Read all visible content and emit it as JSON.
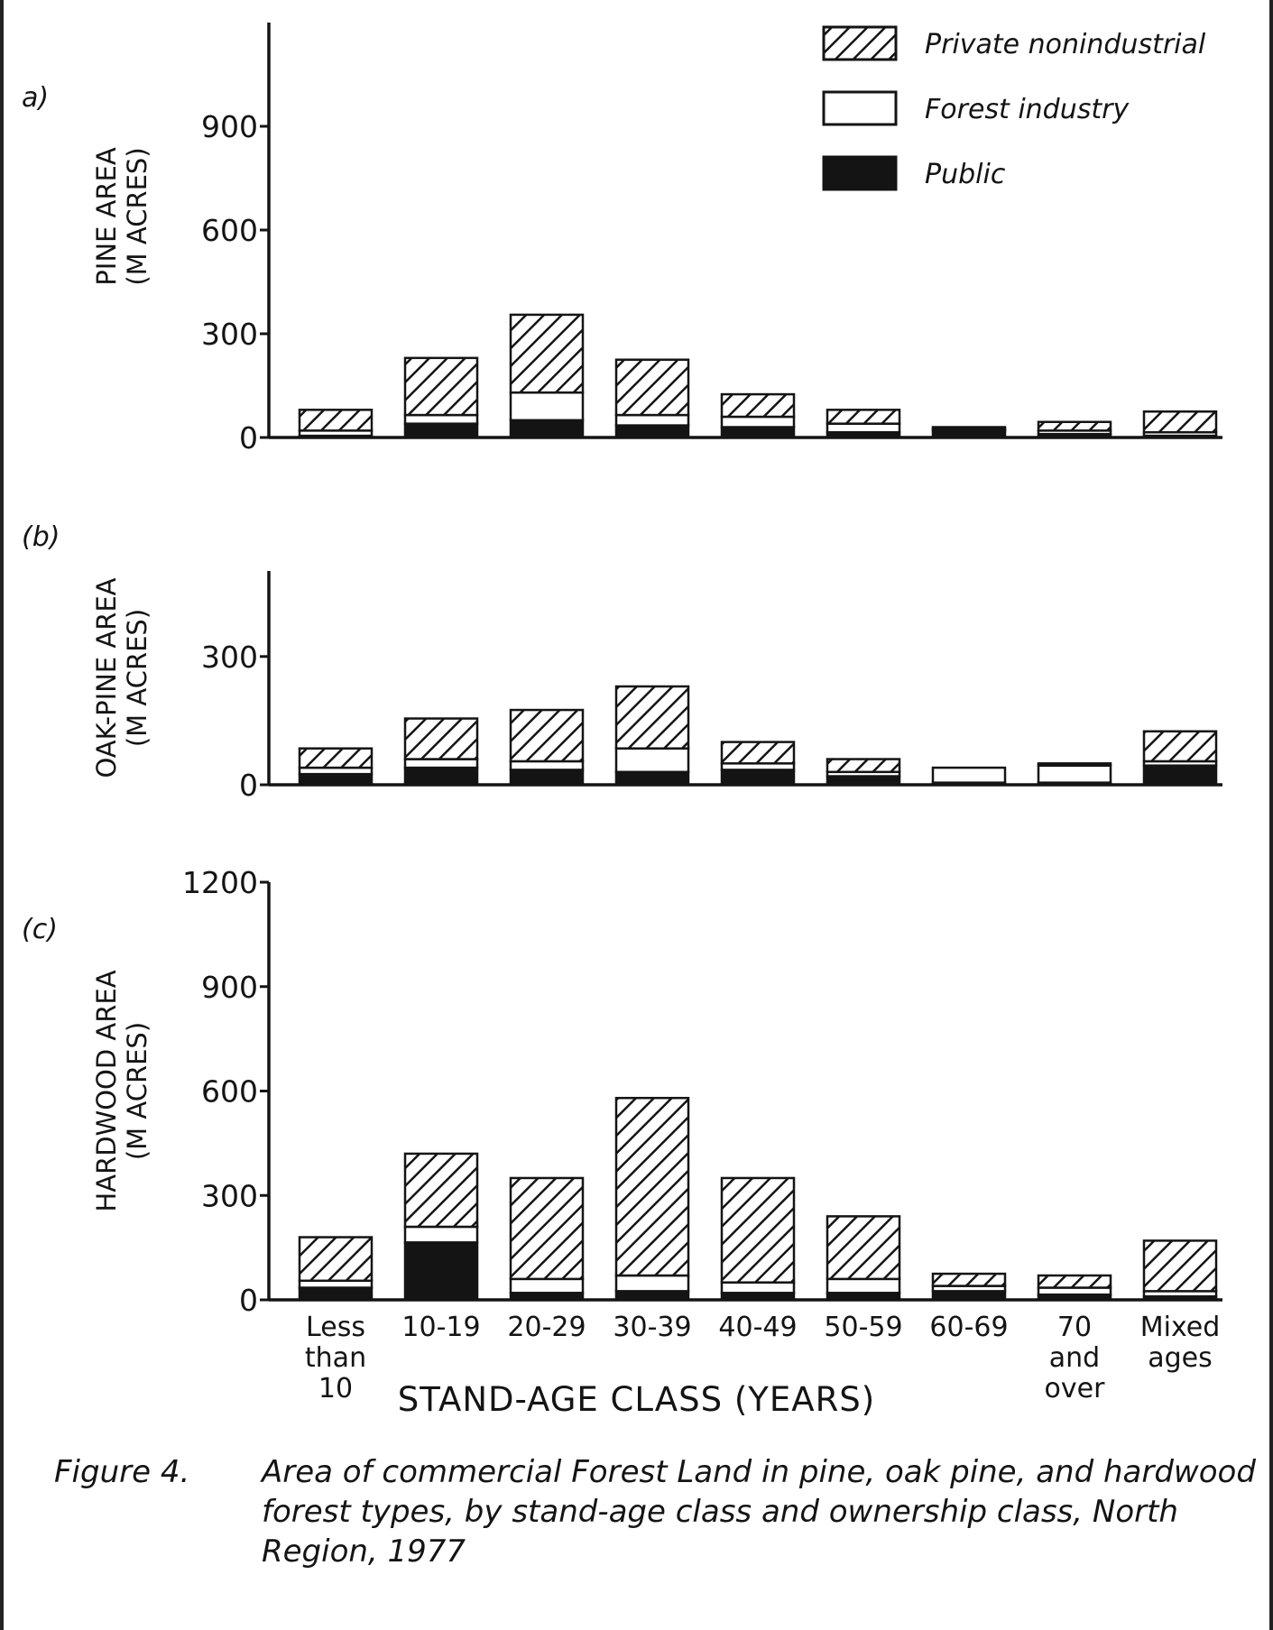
{
  "legend": [
    {
      "key": "private",
      "label": "Private nonindustrial",
      "pattern": "hatched"
    },
    {
      "key": "industry",
      "label": "Forest industry",
      "pattern": "white"
    },
    {
      "key": "public",
      "label": "Public",
      "pattern": "solid-black"
    }
  ],
  "caption": {
    "label": "Figure 4.",
    "text": "Area of commercial Forest Land in pine, oak pine, and hardwood forest types, by stand-age class and ownership class, North Region, 1977"
  },
  "xlabel": "STAND-AGE CLASS (YEARS)",
  "colors": {
    "ink": "#141414",
    "paper": "#ffffff"
  },
  "chart_data": [
    {
      "type": "bar",
      "stacked": true,
      "panel": "a)",
      "ylabel": [
        "PINE AREA",
        "(M ACRES)"
      ],
      "yticks": [
        0,
        300,
        600,
        900
      ],
      "ylim": [
        0,
        1200
      ],
      "categories": [
        "Less than 10",
        "10-19",
        "20-29",
        "30-39",
        "40-49",
        "50-59",
        "60-69",
        "70 and over",
        "Mixed ages"
      ],
      "series": [
        {
          "name": "Public",
          "values": [
            5,
            40,
            50,
            35,
            30,
            15,
            20,
            10,
            5
          ]
        },
        {
          "name": "Forest industry",
          "values": [
            15,
            25,
            80,
            30,
            30,
            25,
            5,
            10,
            10
          ]
        },
        {
          "name": "Private nonindustrial",
          "values": [
            60,
            165,
            225,
            160,
            65,
            40,
            5,
            25,
            60
          ]
        }
      ]
    },
    {
      "type": "bar",
      "stacked": true,
      "panel": "(b)",
      "ylabel": [
        "OAK-PINE AREA",
        "(M ACRES)"
      ],
      "yticks": [
        0,
        300
      ],
      "ylim": [
        0,
        500
      ],
      "categories": [
        "Less than 10",
        "10-19",
        "20-29",
        "30-39",
        "40-49",
        "50-59",
        "60-69",
        "70 and over",
        "Mixed ages"
      ],
      "series": [
        {
          "name": "Public",
          "values": [
            25,
            40,
            35,
            30,
            35,
            20,
            5,
            5,
            45
          ]
        },
        {
          "name": "Forest industry",
          "values": [
            15,
            20,
            20,
            55,
            15,
            10,
            35,
            40,
            10
          ]
        },
        {
          "name": "Private nonindustrial",
          "values": [
            45,
            95,
            120,
            145,
            50,
            30,
            0,
            5,
            70
          ]
        }
      ]
    },
    {
      "type": "bar",
      "stacked": true,
      "panel": "(c)",
      "ylabel": [
        "HARDWOOD AREA",
        "(M ACRES)"
      ],
      "yticks": [
        0,
        300,
        600,
        900,
        1200
      ],
      "ylim": [
        0,
        1200
      ],
      "categories": [
        "Less than 10",
        "10-19",
        "20-29",
        "30-39",
        "40-49",
        "50-59",
        "60-69",
        "70 and over",
        "Mixed ages"
      ],
      "series": [
        {
          "name": "Public",
          "values": [
            35,
            165,
            20,
            25,
            20,
            20,
            25,
            15,
            10
          ]
        },
        {
          "name": "Forest industry",
          "values": [
            20,
            45,
            40,
            45,
            30,
            40,
            15,
            20,
            15
          ]
        },
        {
          "name": "Private nonindustrial",
          "values": [
            125,
            210,
            290,
            510,
            300,
            180,
            35,
            35,
            145
          ]
        }
      ]
    }
  ]
}
